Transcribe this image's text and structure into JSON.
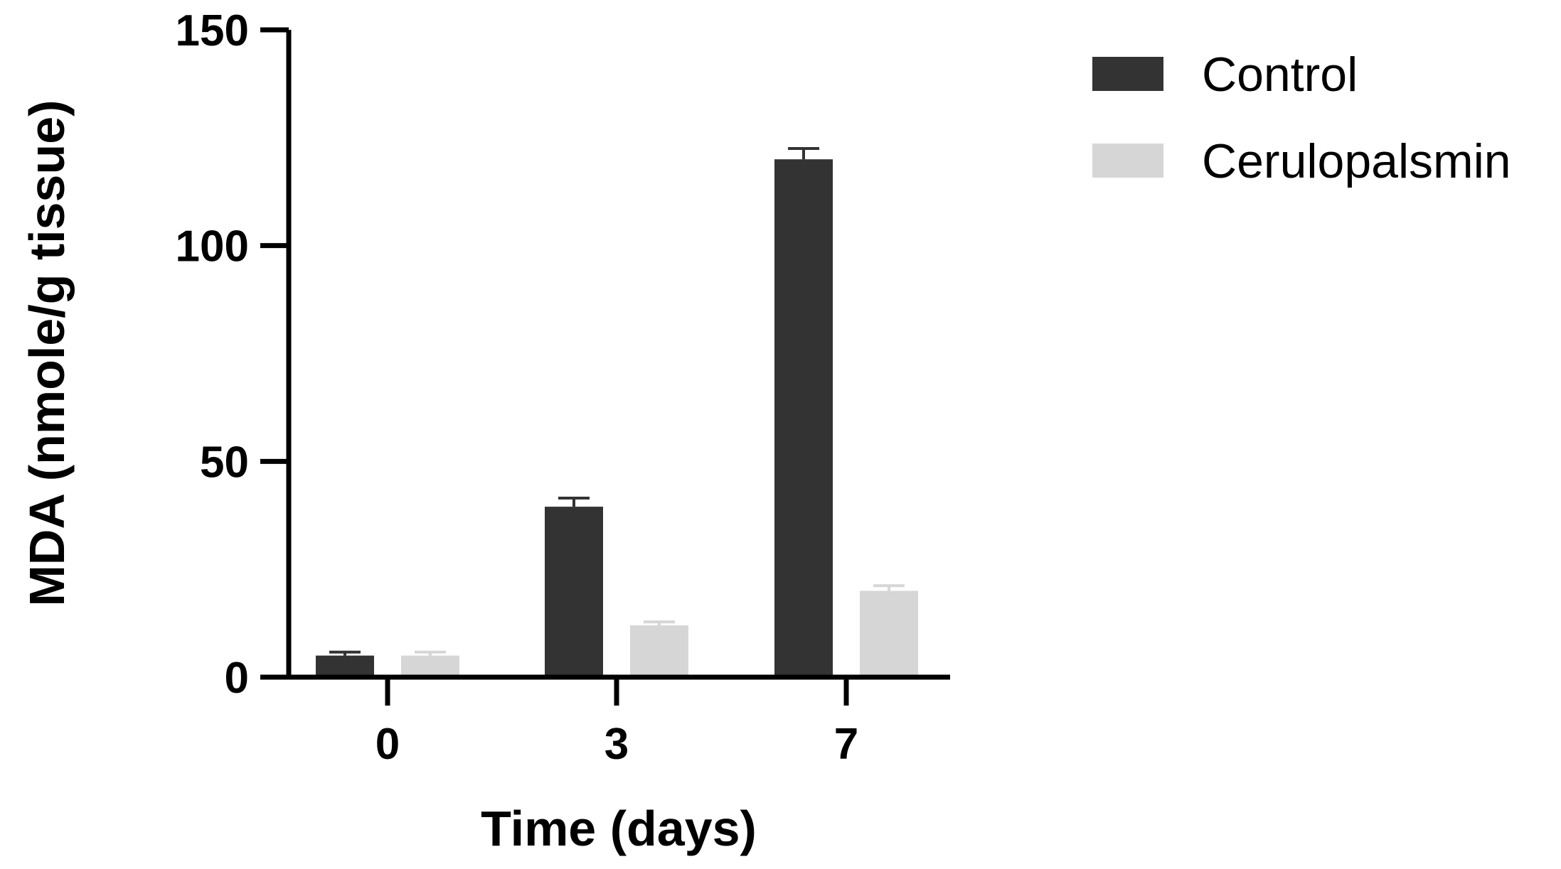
{
  "chart_data": {
    "type": "bar",
    "categories": [
      "0",
      "3",
      "7"
    ],
    "series": [
      {
        "name": "Control",
        "values": [
          5,
          39.5,
          120
        ],
        "errors": [
          0.8,
          2,
          2.5
        ],
        "color": "#333333"
      },
      {
        "name": "Cerulopalsmin",
        "values": [
          5,
          12,
          20
        ],
        "errors": [
          0.8,
          0.8,
          1.2
        ],
        "color": "#d6d6d6"
      }
    ],
    "xlabel": "Time (days)",
    "ylabel": "MDA (nmole/g tissue)",
    "ylim": [
      0,
      150
    ],
    "yticks": [
      0,
      50,
      100,
      150
    ],
    "grid": false,
    "legend_position": "top-right"
  }
}
